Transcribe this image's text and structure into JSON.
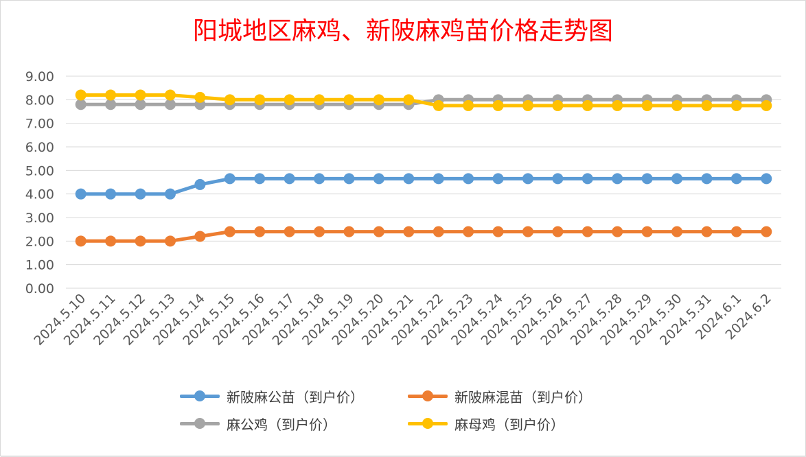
{
  "chart_data": {
    "type": "line",
    "title": "阳城地区麻鸡、新陂麻鸡苗价格走势图",
    "xlabel": "",
    "ylabel": "",
    "ylim": [
      0,
      9
    ],
    "y_ticks": [
      "0.00",
      "1.00",
      "2.00",
      "3.00",
      "4.00",
      "5.00",
      "6.00",
      "7.00",
      "8.00",
      "9.00"
    ],
    "grid": true,
    "legend_position": "bottom",
    "categories": [
      "2024.5.10",
      "2024.5.11",
      "2024.5.12",
      "2024.5.13",
      "2024.5.14",
      "2024.5.15",
      "2024.5.16",
      "2024.5.17",
      "2024.5.18",
      "2024.5.19",
      "2024.5.20",
      "2024.5.21",
      "2024.5.22",
      "2024.5.23",
      "2024.5.24",
      "2024.5.25",
      "2024.5.26",
      "2024.5.27",
      "2024.5.28",
      "2024.5.29",
      "2024.5.30",
      "2024.5.31",
      "2024.6.1",
      "2024.6.2"
    ],
    "series": [
      {
        "name": "新陂麻公苗（到户价）",
        "color": "#5b9bd5",
        "values": [
          4.0,
          4.0,
          4.0,
          4.0,
          4.4,
          4.65,
          4.65,
          4.65,
          4.65,
          4.65,
          4.65,
          4.65,
          4.65,
          4.65,
          4.65,
          4.65,
          4.65,
          4.65,
          4.65,
          4.65,
          4.65,
          4.65,
          4.65,
          4.65
        ]
      },
      {
        "name": "新陂麻混苗（到户价）",
        "color": "#ed7d31",
        "values": [
          2.0,
          2.0,
          2.0,
          2.0,
          2.2,
          2.4,
          2.4,
          2.4,
          2.4,
          2.4,
          2.4,
          2.4,
          2.4,
          2.4,
          2.4,
          2.4,
          2.4,
          2.4,
          2.4,
          2.4,
          2.4,
          2.4,
          2.4,
          2.4
        ]
      },
      {
        "name": "麻公鸡（到户价）",
        "color": "#a5a5a5",
        "values": [
          7.8,
          7.8,
          7.8,
          7.8,
          7.8,
          7.8,
          7.8,
          7.8,
          7.8,
          7.8,
          7.8,
          7.8,
          8.0,
          8.0,
          8.0,
          8.0,
          8.0,
          8.0,
          8.0,
          8.0,
          8.0,
          8.0,
          8.0,
          8.0
        ]
      },
      {
        "name": "麻母鸡（到户价）",
        "color": "#ffc000",
        "values": [
          8.2,
          8.2,
          8.2,
          8.2,
          8.1,
          8.0,
          8.0,
          8.0,
          8.0,
          8.0,
          8.0,
          8.0,
          7.75,
          7.75,
          7.75,
          7.75,
          7.75,
          7.75,
          7.75,
          7.75,
          7.75,
          7.75,
          7.75,
          7.75
        ]
      }
    ]
  }
}
